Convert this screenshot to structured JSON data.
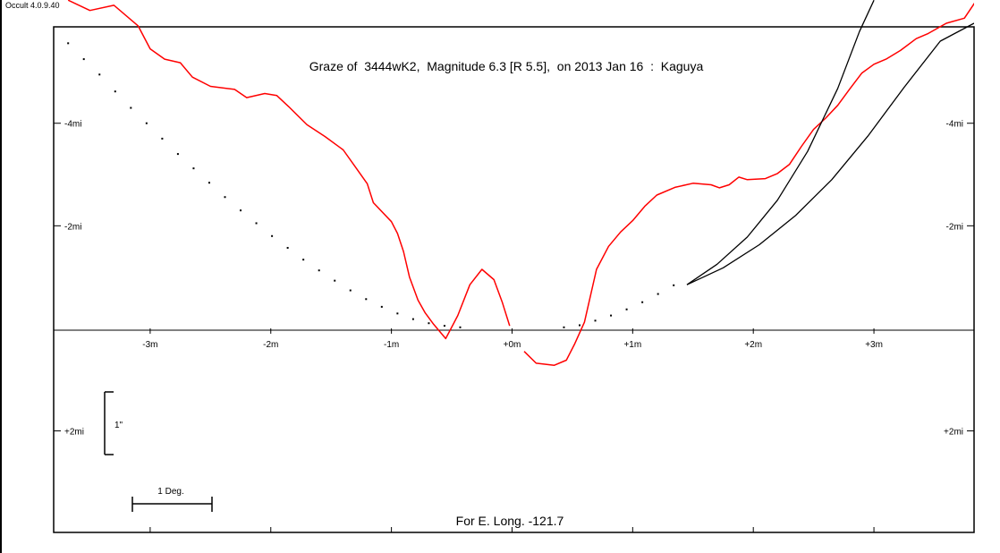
{
  "app": {
    "version": "Occult 4.0.9.40"
  },
  "chart_data": {
    "type": "line",
    "title": "Graze of  3444wK2,  Magnitude 6.3 [R 5.5],  on 2013 Jan 16  :  Kaguya",
    "footer": "For E. Long. -121.7",
    "x_ticks": [
      "-3m",
      "-2m",
      "-1m",
      "+0m",
      "+1m",
      "+2m",
      "+3m"
    ],
    "x_tick_values": [
      -3,
      -2,
      -1,
      0,
      1,
      2,
      3
    ],
    "y_ticks_left": [
      "-4mi",
      "-2mi",
      "+2mi"
    ],
    "y_ticks_right": [
      "-4mi",
      "-2mi",
      "+2mi"
    ],
    "y_tick_values": [
      -4,
      -2,
      2
    ],
    "xlim": [
      -3.8,
      3.83
    ],
    "ylim": [
      -5.88,
      3.98
    ],
    "scale_bar_vertical_label": "1\"",
    "scale_bar_horizontal_label": "1 Deg.",
    "colors": {
      "profile": "#ff0000",
      "ink": "#000000"
    },
    "series": [
      {
        "kind": "lunar-limb-profile",
        "color": "#ff0000",
        "segments": [
          [
            [
              -3.68,
              -6.4
            ],
            [
              -3.5,
              -6.2
            ],
            [
              -3.3,
              -6.3
            ],
            [
              -3.1,
              -5.9
            ],
            [
              -3.0,
              -5.45
            ],
            [
              -2.88,
              -5.25
            ],
            [
              -2.75,
              -5.18
            ],
            [
              -2.65,
              -4.9
            ],
            [
              -2.5,
              -4.72
            ],
            [
              -2.3,
              -4.66
            ],
            [
              -2.2,
              -4.5
            ],
            [
              -2.05,
              -4.58
            ],
            [
              -1.95,
              -4.54
            ],
            [
              -1.85,
              -4.32
            ],
            [
              -1.7,
              -3.97
            ],
            [
              -1.55,
              -3.74
            ],
            [
              -1.4,
              -3.48
            ],
            [
              -1.3,
              -3.15
            ],
            [
              -1.2,
              -2.82
            ],
            [
              -1.15,
              -2.45
            ],
            [
              -1.0,
              -2.08
            ],
            [
              -0.95,
              -1.85
            ],
            [
              -0.9,
              -1.5
            ],
            [
              -0.85,
              -1.0
            ],
            [
              -0.78,
              -0.55
            ],
            [
              -0.72,
              -0.3
            ],
            [
              -0.65,
              -0.08
            ],
            [
              -0.55,
              0.2
            ],
            [
              -0.45,
              -0.25
            ],
            [
              -0.35,
              -0.85
            ],
            [
              -0.25,
              -1.15
            ],
            [
              -0.15,
              -0.95
            ],
            [
              -0.08,
              -0.5
            ],
            [
              -0.02,
              -0.05
            ]
          ],
          [
            [
              0.1,
              0.45
            ],
            [
              0.2,
              0.68
            ],
            [
              0.35,
              0.72
            ],
            [
              0.45,
              0.62
            ],
            [
              0.52,
              0.3
            ],
            [
              0.6,
              -0.12
            ],
            [
              0.7,
              -1.15
            ],
            [
              0.8,
              -1.6
            ],
            [
              0.9,
              -1.88
            ],
            [
              1.0,
              -2.1
            ],
            [
              1.1,
              -2.38
            ],
            [
              1.2,
              -2.6
            ],
            [
              1.35,
              -2.75
            ],
            [
              1.5,
              -2.83
            ],
            [
              1.65,
              -2.8
            ],
            [
              1.72,
              -2.74
            ],
            [
              1.8,
              -2.8
            ],
            [
              1.88,
              -2.95
            ],
            [
              1.95,
              -2.9
            ],
            [
              2.1,
              -2.92
            ],
            [
              2.2,
              -3.02
            ],
            [
              2.3,
              -3.2
            ],
            [
              2.4,
              -3.55
            ],
            [
              2.5,
              -3.88
            ],
            [
              2.6,
              -4.1
            ],
            [
              2.7,
              -4.35
            ],
            [
              2.8,
              -4.67
            ],
            [
              2.9,
              -4.98
            ],
            [
              3.0,
              -5.15
            ],
            [
              3.1,
              -5.25
            ],
            [
              3.22,
              -5.42
            ],
            [
              3.35,
              -5.65
            ],
            [
              3.45,
              -5.75
            ],
            [
              3.6,
              -5.95
            ],
            [
              3.75,
              -6.05
            ],
            [
              3.85,
              -6.4
            ]
          ]
        ]
      },
      {
        "kind": "dotted-limit-line",
        "color": "#000000",
        "points": [
          [
            -3.68,
            -5.56
          ],
          [
            -3.55,
            -5.25
          ],
          [
            -3.42,
            -4.95
          ],
          [
            -3.29,
            -4.62
          ],
          [
            -3.16,
            -4.3
          ],
          [
            -3.03,
            -4.0
          ],
          [
            -2.9,
            -3.7
          ],
          [
            -2.77,
            -3.4
          ],
          [
            -2.64,
            -3.12
          ],
          [
            -2.51,
            -2.84
          ],
          [
            -2.38,
            -2.56
          ],
          [
            -2.25,
            -2.3
          ],
          [
            -2.12,
            -2.05
          ],
          [
            -1.99,
            -1.8
          ],
          [
            -1.86,
            -1.57
          ],
          [
            -1.73,
            -1.34
          ],
          [
            -1.6,
            -1.13
          ],
          [
            -1.47,
            -0.93
          ],
          [
            -1.34,
            -0.74
          ],
          [
            -1.21,
            -0.57
          ],
          [
            -1.08,
            -0.42
          ],
          [
            -0.95,
            -0.29
          ],
          [
            -0.82,
            -0.18
          ],
          [
            -0.69,
            -0.1
          ],
          [
            -0.56,
            -0.05
          ],
          [
            -0.43,
            -0.02
          ],
          [
            0.43,
            -0.02
          ],
          [
            0.56,
            -0.06
          ],
          [
            0.69,
            -0.15
          ],
          [
            0.82,
            -0.25
          ],
          [
            0.95,
            -0.37
          ],
          [
            1.08,
            -0.51
          ],
          [
            1.21,
            -0.67
          ],
          [
            1.34,
            -0.84
          ]
        ]
      },
      {
        "kind": "limit-curve-steep",
        "color": "#000000",
        "points": [
          [
            1.45,
            -0.85
          ],
          [
            1.7,
            -1.25
          ],
          [
            1.95,
            -1.78
          ],
          [
            2.2,
            -2.5
          ],
          [
            2.45,
            -3.45
          ],
          [
            2.7,
            -4.68
          ],
          [
            2.88,
            -5.79
          ],
          [
            3.0,
            -6.4
          ]
        ]
      },
      {
        "kind": "limit-curve-shallow",
        "color": "#000000",
        "points": [
          [
            1.45,
            -0.85
          ],
          [
            1.75,
            -1.18
          ],
          [
            2.05,
            -1.63
          ],
          [
            2.35,
            -2.2
          ],
          [
            2.65,
            -2.9
          ],
          [
            2.95,
            -3.75
          ],
          [
            3.25,
            -4.7
          ],
          [
            3.55,
            -5.6
          ],
          [
            3.83,
            -5.95
          ]
        ]
      }
    ]
  }
}
